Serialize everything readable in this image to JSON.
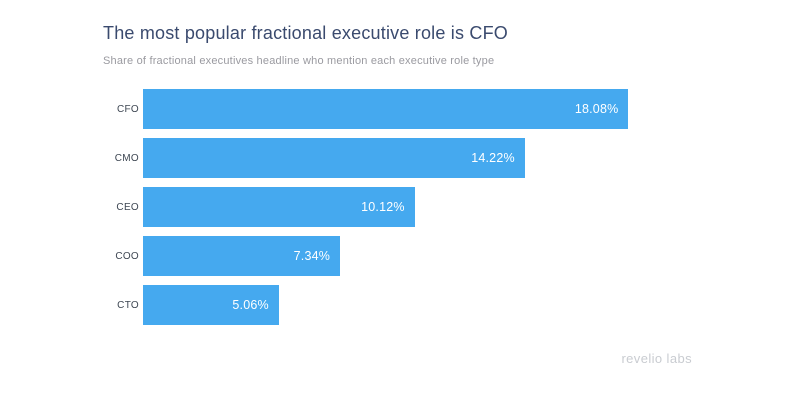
{
  "chart_data": {
    "type": "bar",
    "orientation": "horizontal",
    "title": "The most popular fractional executive role is CFO",
    "subtitle": "Share of fractional executives headline who mention each executive role type",
    "categories": [
      "CFO",
      "CMO",
      "CEO",
      "COO",
      "CTO"
    ],
    "values": [
      18.08,
      14.22,
      10.12,
      7.34,
      5.06
    ],
    "value_labels": [
      "18.08%",
      "14.22%",
      "10.12%",
      "7.34%",
      "5.06%"
    ],
    "axis_max": 20,
    "grid": false,
    "legend": false,
    "bar_color": "#45a9ef",
    "value_label_color": "#ffffff"
  },
  "colors": {
    "title": "#3a4a6e",
    "subtitle": "#9a9aa0",
    "category_label": "#3d4652",
    "background": "#ffffff",
    "logo": "#c9ccd1"
  },
  "footer": {
    "logo_text": "revelio labs"
  }
}
